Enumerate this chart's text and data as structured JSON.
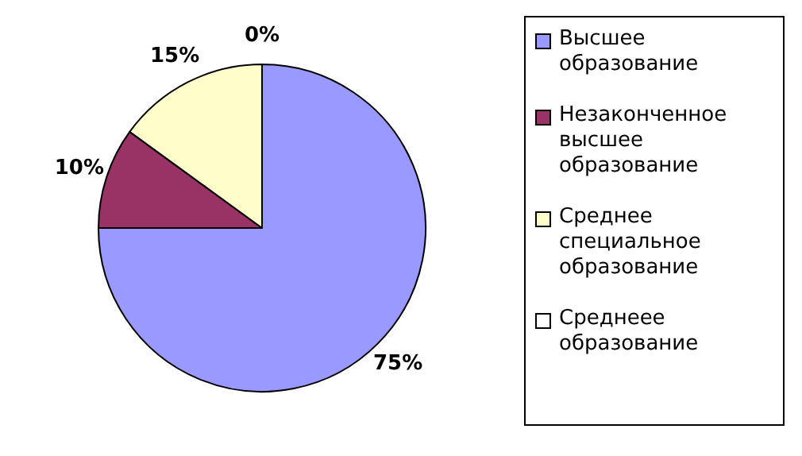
{
  "chart_data": {
    "type": "pie",
    "categories": [
      "Высшее образование",
      "Незаконченное высшее образование",
      "Среднее специальное образование",
      "Среднеее образование"
    ],
    "values": [
      75,
      10,
      15,
      0
    ],
    "colors": [
      "#9999ff",
      "#993366",
      "#ffffcc",
      "#ffffff"
    ],
    "value_labels": [
      "75%",
      "10%",
      "15%",
      "0%"
    ],
    "legend": "right"
  }
}
